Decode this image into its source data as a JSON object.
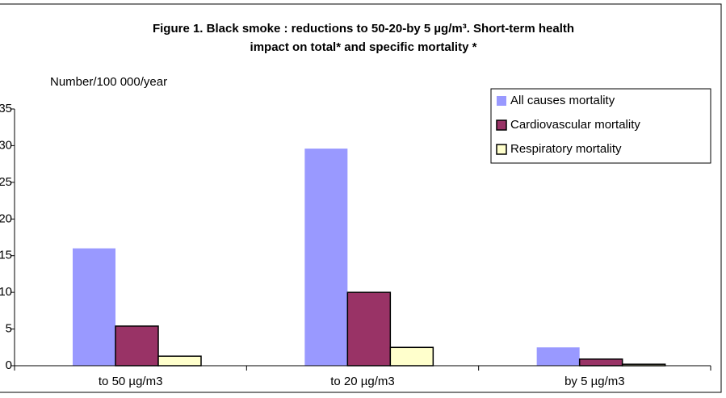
{
  "chart_data": {
    "type": "bar",
    "title": [
      "Figure 1. Black smoke : reductions to 50-20-by 5 µg/m³. Short-term health",
      "impact on total* and specific mortality *"
    ],
    "y_label": "Number/100 000/year",
    "categories": [
      "to 50 µg/m3",
      "to 20 µg/m3",
      "by 5 µg/m3"
    ],
    "series": [
      {
        "name": "All causes mortality",
        "color": "#9999ff",
        "values": [
          16,
          29.6,
          2.5
        ]
      },
      {
        "name": "Cardiovascular mortality",
        "color": "#993366",
        "values": [
          5.4,
          10,
          0.9
        ]
      },
      {
        "name": "Respiratory mortality",
        "color": "#ffffcc",
        "values": [
          1.3,
          2.5,
          0.2
        ]
      }
    ],
    "ylim": [
      0,
      35
    ],
    "yticks": [
      0,
      5,
      10,
      15,
      20,
      25,
      30,
      35
    ],
    "legend": "upper right"
  }
}
